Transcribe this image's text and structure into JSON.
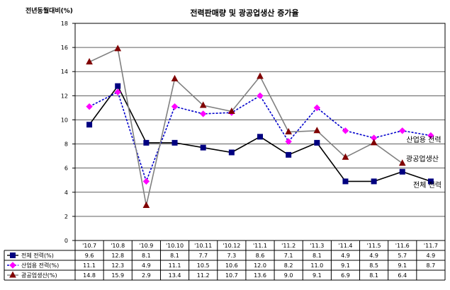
{
  "chart_data": {
    "type": "line",
    "title": "전력판매량 및 광공업생산 증가율",
    "ylabel": "전년동월대비(%)",
    "xlabel": "",
    "ylim": [
      0,
      18
    ],
    "yticks": [
      0,
      2,
      4,
      6,
      8,
      10,
      12,
      14,
      16,
      18
    ],
    "grid": true,
    "legend": "data-table-below",
    "categories": [
      "'10.7",
      "'10.8",
      "'10.9",
      "'10.10",
      "'10.11",
      "'10.12",
      "'11.1",
      "'11.2",
      "'11.3",
      "'11.4",
      "'11.5",
      "'11.6",
      "'11.7"
    ],
    "series": [
      {
        "name": "전체 전력(%)",
        "color": "#000080",
        "line_color": "#000000",
        "marker": "square",
        "values": [
          9.6,
          12.8,
          8.1,
          8.1,
          7.7,
          7.3,
          8.6,
          7.1,
          8.1,
          4.9,
          4.9,
          5.7,
          4.9
        ],
        "labels": [
          "9.6",
          "12.8",
          "8.1",
          "8.1",
          "7.7",
          "7.3",
          "8.6",
          "7.1",
          "8.1",
          "4.9",
          "4.9",
          "5.7",
          "4.9"
        ],
        "annotation": "전체 전력"
      },
      {
        "name": "산업용 전력(%)",
        "color": "#ff00ff",
        "line_color": "#0000cc",
        "marker": "diamond",
        "values": [
          11.1,
          12.3,
          4.9,
          11.1,
          10.5,
          10.6,
          12.0,
          8.2,
          11.0,
          9.1,
          8.5,
          9.1,
          8.7
        ],
        "labels": [
          "11.1",
          "12.3",
          "4.9",
          "11.1",
          "10.5",
          "10.6",
          "12.0",
          "8.2",
          "11.0",
          "9.1",
          "8.5",
          "9.1",
          "8.7"
        ],
        "annotation": "산업용 전력"
      },
      {
        "name": "광공업생산(%)",
        "color": "#800000",
        "line_color": "#808080",
        "marker": "triangle",
        "values": [
          14.8,
          15.9,
          2.9,
          13.4,
          11.2,
          10.7,
          13.6,
          9.0,
          9.1,
          6.9,
          8.1,
          6.4,
          null
        ],
        "labels": [
          "14.8",
          "15.9",
          "2.9",
          "13.4",
          "11.2",
          "10.7",
          "13.6",
          "9.0",
          "9.1",
          "6.9",
          "8.1",
          "6.4",
          ""
        ],
        "annotation": "광공업생산"
      }
    ]
  }
}
